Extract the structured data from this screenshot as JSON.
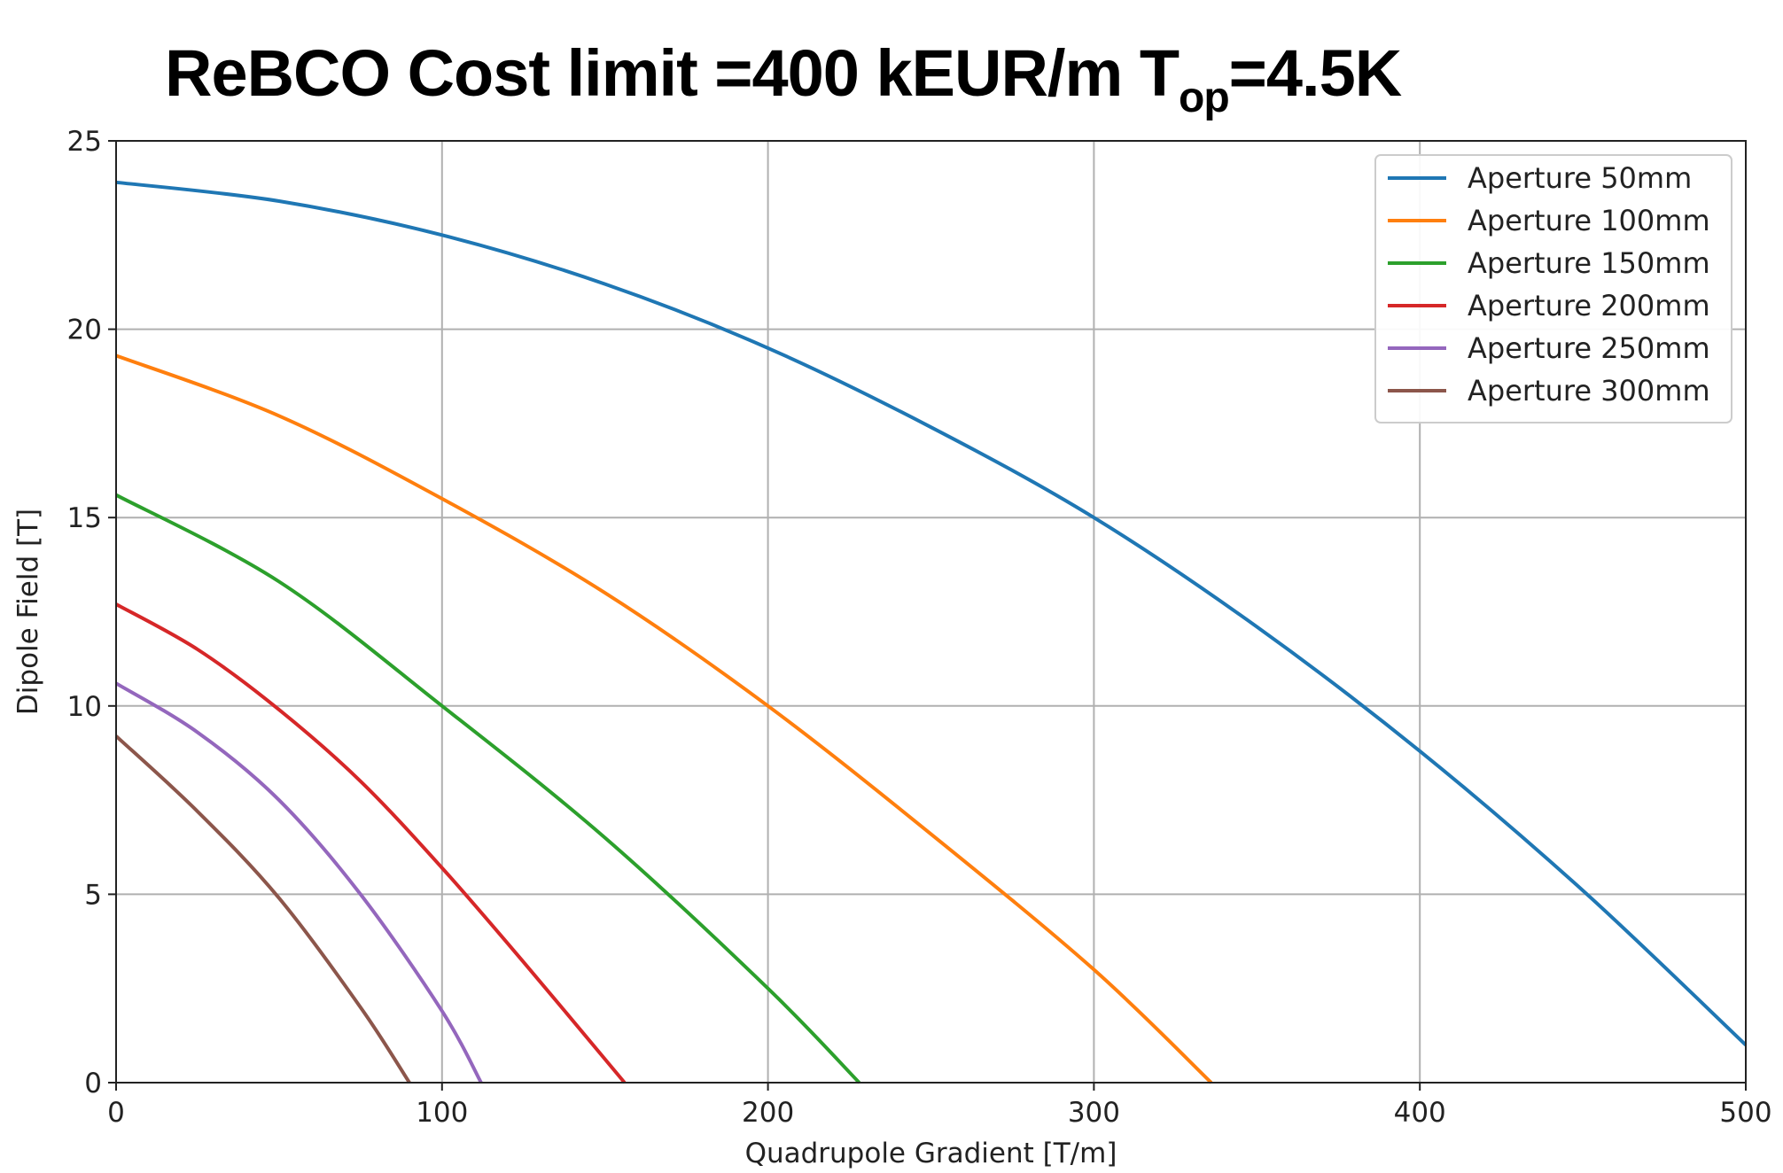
{
  "chart_data": {
    "type": "line",
    "title_main": "ReBCO Cost limit =400 kEUR/m T",
    "title_sub": "op",
    "title_end": "=4.5K",
    "xlabel": "Quadrupole Gradient [T/m]",
    "ylabel": "Dipole Field [T]",
    "xlim": [
      0,
      500
    ],
    "ylim": [
      0,
      25
    ],
    "xticks": [
      0,
      100,
      200,
      300,
      400,
      500
    ],
    "yticks": [
      0,
      5,
      10,
      15,
      20,
      25
    ],
    "grid": true,
    "legend_position": "top-right",
    "series": [
      {
        "name": "Aperture 50mm",
        "color": "#1f77b4",
        "x": [
          0,
          50,
          100,
          150,
          200,
          250,
          300,
          350,
          400,
          450,
          500
        ],
        "y": [
          23.9,
          23.4,
          22.5,
          21.2,
          19.5,
          17.4,
          15.0,
          12.1,
          8.8,
          5.1,
          1.0
        ]
      },
      {
        "name": "Aperture 100mm",
        "color": "#ff7f0e",
        "x": [
          0,
          50,
          100,
          150,
          200,
          250,
          300,
          336
        ],
        "y": [
          19.3,
          17.7,
          15.5,
          13.0,
          10.0,
          6.6,
          3.0,
          0
        ]
      },
      {
        "name": "Aperture 150mm",
        "color": "#2ca02c",
        "x": [
          0,
          50,
          100,
          150,
          200,
          228
        ],
        "y": [
          15.6,
          13.3,
          10.0,
          6.5,
          2.5,
          0
        ]
      },
      {
        "name": "Aperture 200mm",
        "color": "#d62728",
        "x": [
          0,
          25,
          50,
          75,
          100,
          125,
          156
        ],
        "y": [
          12.7,
          11.5,
          9.9,
          8.0,
          5.7,
          3.2,
          0
        ]
      },
      {
        "name": "Aperture 250mm",
        "color": "#9467bd",
        "x": [
          0,
          25,
          50,
          75,
          100,
          112
        ],
        "y": [
          10.6,
          9.3,
          7.5,
          5.0,
          1.9,
          0
        ]
      },
      {
        "name": "Aperture 300mm",
        "color": "#8c564b",
        "x": [
          0,
          25,
          50,
          75,
          90
        ],
        "y": [
          9.2,
          7.2,
          4.9,
          2.0,
          0
        ]
      }
    ]
  }
}
